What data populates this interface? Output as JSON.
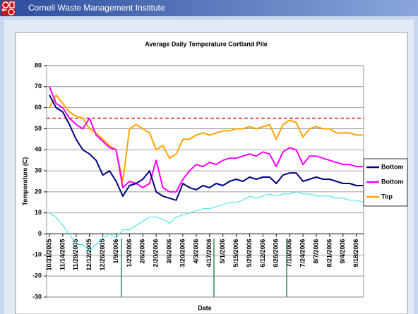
{
  "header_title": "Cornell Waste Management Institute",
  "chart_data": {
    "type": "line",
    "title": "Average Daily Temperature Cortland Pile",
    "x_label": "Date",
    "y_label": "Temperature (C)",
    "categories": [
      "10/31/2005",
      null,
      "11/14/2005",
      null,
      "11/28/2005",
      null,
      "12/12/2005",
      null,
      "12/26/2005",
      null,
      "1/9/2006",
      null,
      "1/23/2006",
      null,
      "2/6/2006",
      null,
      "2/20/2006",
      null,
      "3/6/2006",
      null,
      "3/20/2006",
      null,
      "4/3/2006",
      null,
      "4/17/2006",
      null,
      "5/1/2006",
      null,
      "5/15/2006",
      null,
      "5/29/2006",
      null,
      "6/12/2006",
      null,
      "6/26/2006",
      null,
      "7/10/2006",
      null,
      "7/24/2006",
      null,
      "8/7/2006",
      null,
      "8/21/2006",
      null,
      "9/4/2006",
      null,
      "9/18/2006",
      null
    ],
    "series": [
      {
        "name": "Bottom",
        "color": "#000080",
        "values": [
          66,
          60,
          58,
          52,
          45,
          40,
          38,
          35,
          28,
          30,
          25,
          18,
          23,
          24,
          26,
          30,
          20,
          18,
          17,
          16,
          24,
          22,
          21,
          23,
          22,
          24,
          23,
          25,
          26,
          25,
          27,
          26,
          27,
          27,
          24,
          28,
          29,
          29,
          25,
          26,
          27,
          26,
          26,
          25,
          24,
          24,
          23,
          23
        ]
      },
      {
        "name": "Bottom",
        "color": "#ff00ff",
        "values": [
          70,
          62,
          60,
          55,
          52,
          50,
          55,
          47,
          44,
          41,
          40,
          22,
          25,
          24,
          22,
          24,
          35,
          22,
          20,
          20,
          26,
          30,
          33,
          32,
          34,
          33,
          35,
          36,
          36,
          37,
          38,
          37,
          39,
          38,
          32,
          39,
          41,
          40,
          33,
          37,
          37,
          36,
          35,
          34,
          33,
          33,
          32,
          32
        ]
      },
      {
        "name": "Top",
        "color": "#ffa500",
        "values": [
          60,
          66,
          62,
          58,
          56,
          55,
          50,
          48,
          45,
          42,
          40,
          25,
          50,
          52,
          50,
          48,
          40,
          42,
          36,
          38,
          45,
          45,
          47,
          48,
          47,
          48,
          49,
          49,
          50,
          50,
          51,
          50,
          51,
          52,
          45,
          52,
          54,
          53,
          46,
          50,
          51,
          50,
          50,
          48,
          48,
          48,
          47,
          47
        ]
      },
      {
        "color": "#33e0e0",
        "values": [
          10,
          8,
          4,
          0,
          -5,
          -5,
          -8,
          -5,
          -2,
          0,
          -2,
          2,
          2,
          4,
          6,
          8,
          8,
          7,
          5,
          8,
          9,
          10,
          11,
          12,
          12,
          13,
          14,
          15,
          15,
          16,
          18,
          17,
          18,
          19,
          18,
          19,
          19,
          20,
          19,
          19,
          18,
          18,
          18,
          17,
          17,
          16,
          16,
          15
        ]
      }
    ],
    "reference_line": {
      "value": 55,
      "color": "#e02020"
    },
    "ylim": [
      -30,
      80
    ],
    "yticks": [
      -30,
      -20,
      -10,
      0,
      10,
      20,
      30,
      40,
      50,
      60,
      70,
      80
    ],
    "grid": true,
    "legend": "right"
  }
}
